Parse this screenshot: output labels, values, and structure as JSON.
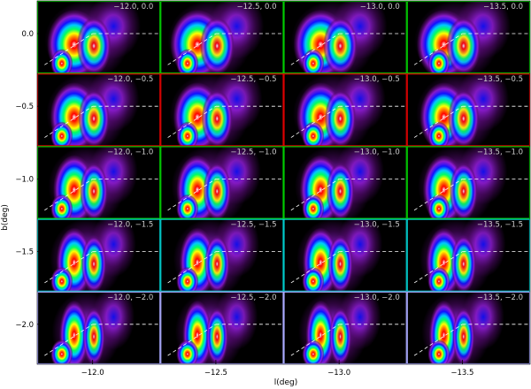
{
  "chart_data": {
    "type": "heatmap",
    "title": "",
    "xlabel": "l(deg)",
    "ylabel": "b(deg)",
    "x_ticks": [
      {
        "value": -12.0,
        "label": "−12.0"
      },
      {
        "value": -12.5,
        "label": "−12.5"
      },
      {
        "value": -13.0,
        "label": "−13.0"
      },
      {
        "value": -13.5,
        "label": "−13.5"
      }
    ],
    "y_ticks": [
      {
        "value": 0.0,
        "label": "0.0"
      },
      {
        "value": -0.5,
        "label": "−0.5"
      },
      {
        "value": -1.0,
        "label": "−1.0"
      },
      {
        "value": -1.5,
        "label": "−1.5"
      },
      {
        "value": -2.0,
        "label": "−2.0"
      }
    ],
    "grid": false,
    "legend": "none",
    "colormap": [
      "#000000",
      "#5a0a78",
      "#a020f0",
      "#1010ff",
      "#00c8ff",
      "#00ff60",
      "#ffff00",
      "#ff8000",
      "#ff0000",
      "#ffffff"
    ],
    "columns": [
      -12.0,
      -12.5,
      -13.0,
      -13.5
    ],
    "rows": [
      0.0,
      -0.5,
      -1.0,
      -1.5,
      -2.0
    ],
    "panels": [
      {
        "label": "−12.0, 0.0",
        "row": 0,
        "col": 0,
        "border": "#00cc00"
      },
      {
        "label": "−12.5, 0.0",
        "row": 0,
        "col": 1,
        "border": "#00cc00"
      },
      {
        "label": "−13.0, 0.0",
        "row": 0,
        "col": 2,
        "border": "#00cc00"
      },
      {
        "label": "−13.5, 0.0",
        "row": 0,
        "col": 3,
        "border": "#00cc00"
      },
      {
        "label": "−12.0, −0.5",
        "row": 1,
        "col": 0,
        "border": "#dd0000"
      },
      {
        "label": "−12.5, −0.5",
        "row": 1,
        "col": 1,
        "border": "#dd0000"
      },
      {
        "label": "−13.0, −0.5",
        "row": 1,
        "col": 2,
        "border": "#dd0000"
      },
      {
        "label": "−13.5, −0.5",
        "row": 1,
        "col": 3,
        "border": "#dd0000"
      },
      {
        "label": "−12.0, −1.0",
        "row": 2,
        "col": 0,
        "border": "#00cc00"
      },
      {
        "label": "−12.5, −1.0",
        "row": 2,
        "col": 1,
        "border": "#00cc00"
      },
      {
        "label": "−13.0, −1.0",
        "row": 2,
        "col": 2,
        "border": "#00cc00"
      },
      {
        "label": "−13.5, −1.0",
        "row": 2,
        "col": 3,
        "border": "#00cc00"
      },
      {
        "label": "−12.0, −1.5",
        "row": 3,
        "col": 0,
        "border": "#00cccc"
      },
      {
        "label": "−12.5, −1.5",
        "row": 3,
        "col": 1,
        "border": "#00cccc"
      },
      {
        "label": "−13.0, −1.5",
        "row": 3,
        "col": 2,
        "border": "#00cccc"
      },
      {
        "label": "−13.5, −1.5",
        "row": 3,
        "col": 3,
        "border": "#00cccc"
      },
      {
        "label": "−12.0, −2.0",
        "row": 4,
        "col": 0,
        "border": "#aaaaff"
      },
      {
        "label": "−12.5, −2.0",
        "row": 4,
        "col": 1,
        "border": "#aaaaff"
      },
      {
        "label": "−13.0, −2.0",
        "row": 4,
        "col": 2,
        "border": "#aaaaff"
      },
      {
        "label": "−13.5, −2.0",
        "row": 4,
        "col": 3,
        "border": "#aaaaff"
      }
    ]
  }
}
